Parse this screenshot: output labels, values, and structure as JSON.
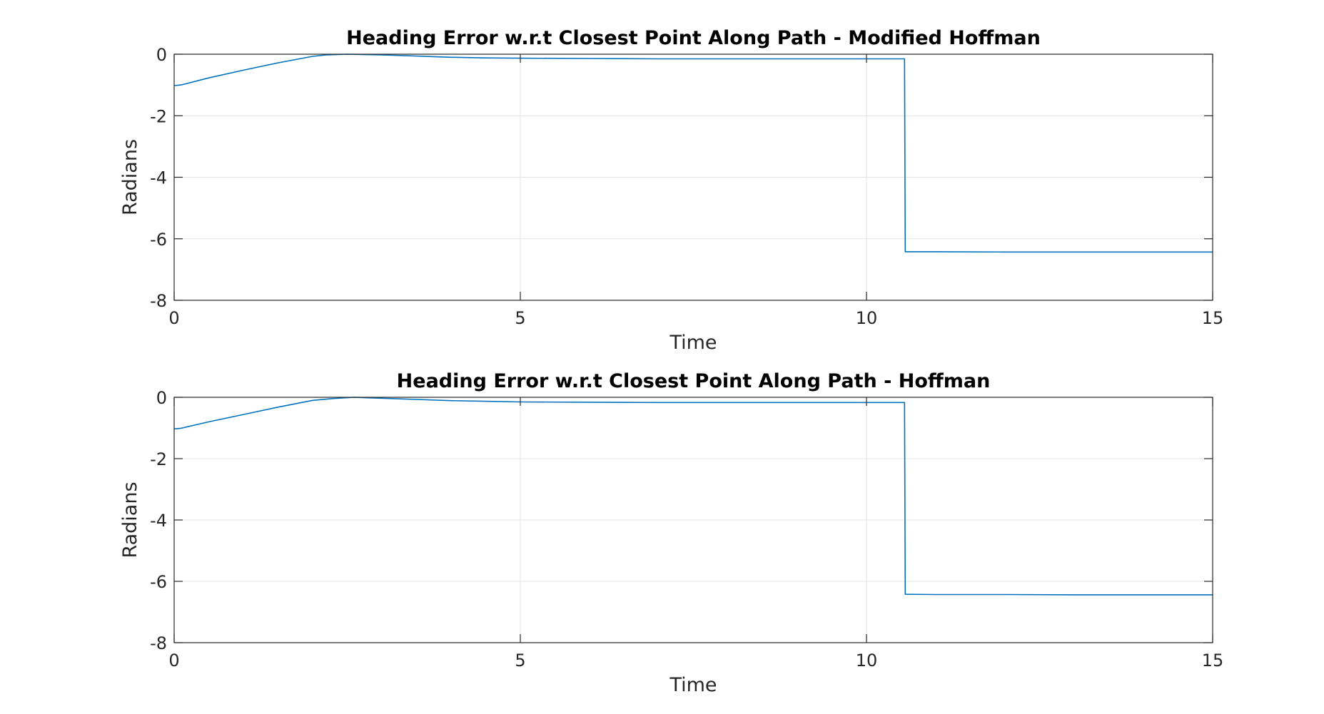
{
  "chart_data": [
    {
      "type": "line",
      "title": "Heading Error w.r.t Closest Point Along Path - Modified Hoffman",
      "xlabel": "Time",
      "ylabel": "Radians",
      "xlim": [
        0,
        15
      ],
      "ylim": [
        -8,
        0
      ],
      "xticks": [
        "0",
        "5",
        "10",
        "15"
      ],
      "yticks": [
        "0",
        "-2",
        "-4",
        "-6",
        "-8"
      ],
      "grid": true,
      "color": "#0072BD",
      "series": [
        {
          "x": [
            0,
            0.1,
            0.5,
            1.0,
            1.5,
            2.0,
            2.2,
            2.5,
            3.0,
            3.5,
            4.0,
            4.5,
            5.0,
            6.0,
            7.0,
            8.0,
            9.0,
            10.0,
            10.5,
            10.55,
            10.56,
            11.0,
            12.0,
            13.0,
            14.0,
            15.0
          ],
          "y": [
            -1.02,
            -1.0,
            -0.77,
            -0.52,
            -0.28,
            -0.07,
            -0.02,
            0.0,
            -0.02,
            -0.06,
            -0.1,
            -0.12,
            -0.13,
            -0.14,
            -0.15,
            -0.15,
            -0.15,
            -0.15,
            -0.15,
            -0.15,
            -6.42,
            -6.42,
            -6.43,
            -6.43,
            -6.43,
            -6.43
          ]
        }
      ]
    },
    {
      "type": "line",
      "title": "Heading Error w.r.t Closest Point Along Path - Hoffman",
      "xlabel": "Time",
      "ylabel": "Radians",
      "xlim": [
        0,
        15
      ],
      "ylim": [
        -8,
        0
      ],
      "xticks": [
        "0",
        "5",
        "10",
        "15"
      ],
      "yticks": [
        "0",
        "-2",
        "-4",
        "-6",
        "-8"
      ],
      "grid": true,
      "color": "#0072BD",
      "series": [
        {
          "x": [
            0,
            0.1,
            0.5,
            1.0,
            1.5,
            2.0,
            2.3,
            2.6,
            3.0,
            3.5,
            4.0,
            4.5,
            5.0,
            6.0,
            7.0,
            8.0,
            9.0,
            10.0,
            10.5,
            10.55,
            10.56,
            11.0,
            12.0,
            13.0,
            14.0,
            15.0
          ],
          "y": [
            -1.03,
            -1.01,
            -0.8,
            -0.56,
            -0.32,
            -0.1,
            -0.04,
            0.0,
            -0.03,
            -0.07,
            -0.11,
            -0.13,
            -0.15,
            -0.16,
            -0.17,
            -0.17,
            -0.17,
            -0.17,
            -0.17,
            -0.17,
            -6.42,
            -6.43,
            -6.43,
            -6.44,
            -6.44,
            -6.44
          ]
        }
      ]
    }
  ]
}
